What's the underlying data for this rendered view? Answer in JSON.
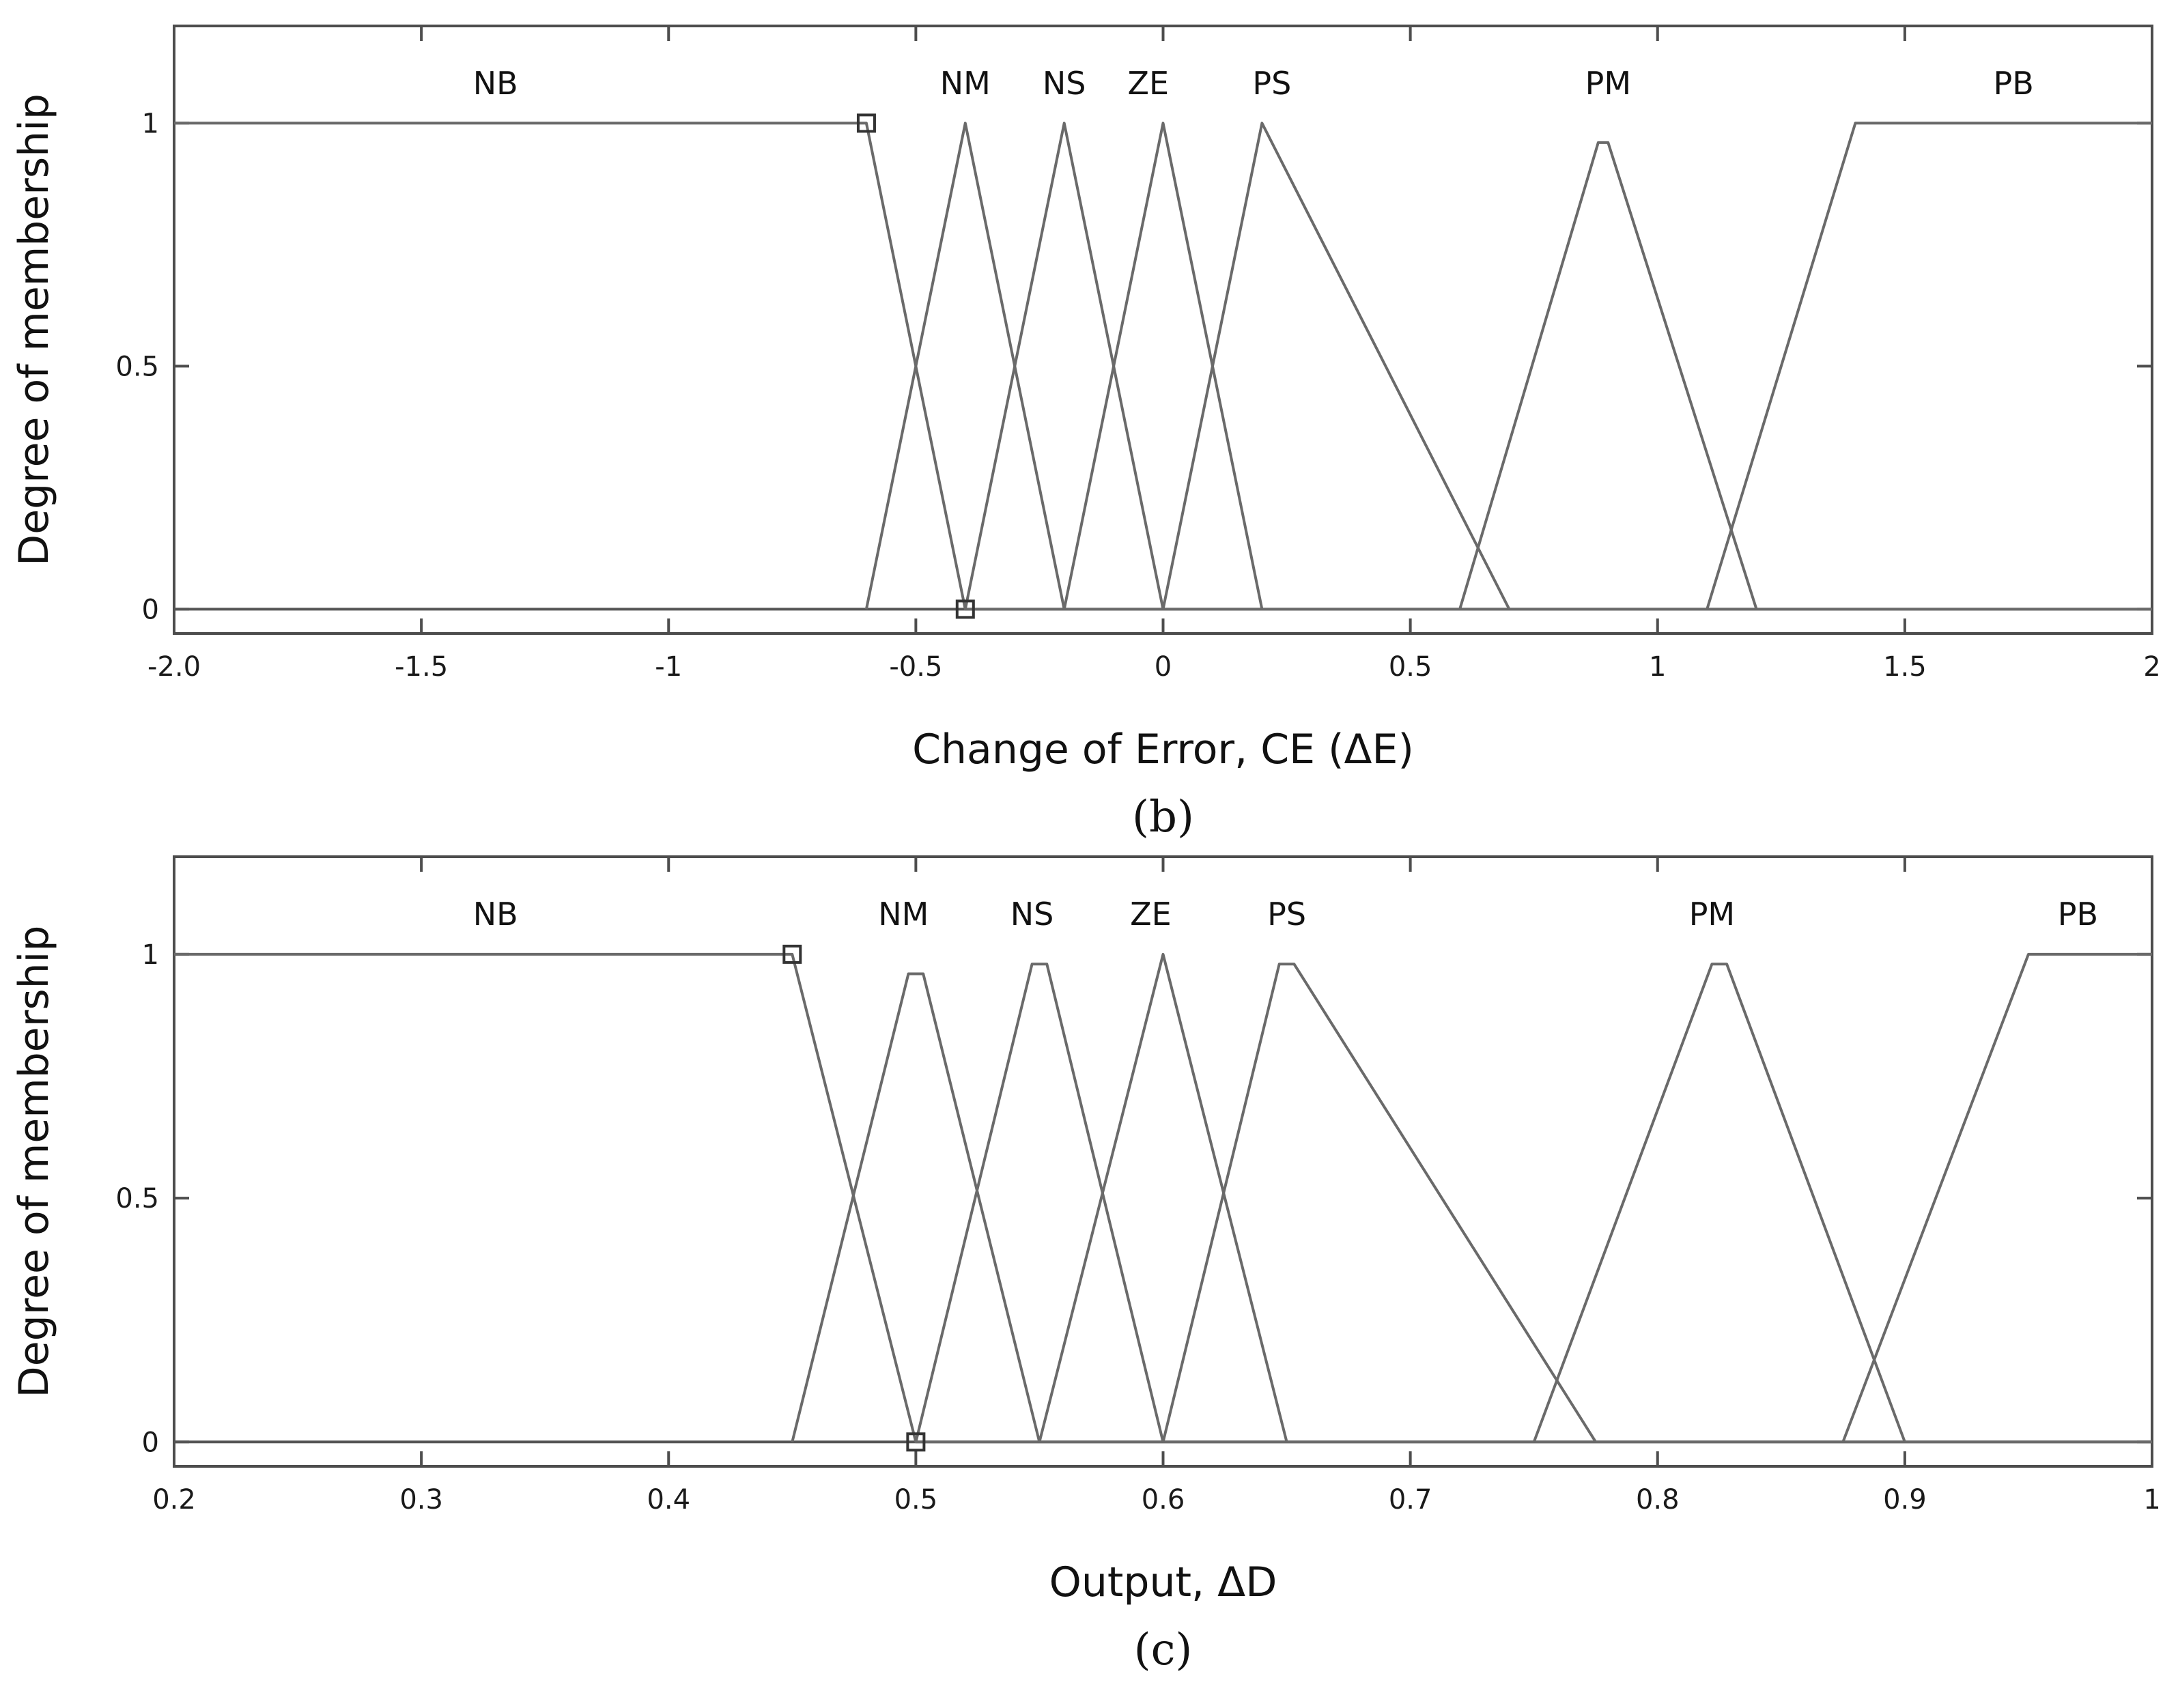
{
  "chart_data": [
    {
      "type": "line",
      "panel_label": "(b)",
      "xlabel": "Change of Error, CE (ΔE)",
      "ylabel": "Degree of membership",
      "xlim": [
        -2,
        2
      ],
      "ylim": [
        -0.05,
        1.2
      ],
      "x_ticks": [
        -2,
        -1.5,
        -1,
        -0.5,
        0,
        0.5,
        1,
        1.5,
        2
      ],
      "x_tick_labels": [
        "-2.0",
        "-1.5",
        "-1",
        "-0.5",
        "0",
        "0.5",
        "1",
        "1.5",
        "2"
      ],
      "y_ticks": [
        0,
        0.5,
        1
      ],
      "y_tick_labels": [
        "0",
        "0.5",
        "1"
      ],
      "grid": false,
      "series": [
        {
          "name": "NB",
          "label_x": -1.35,
          "points": [
            [
              -2,
              1
            ],
            [
              -0.6,
              1
            ],
            [
              -0.4,
              0
            ],
            [
              2,
              0
            ]
          ]
        },
        {
          "name": "NM",
          "label_x": -0.4,
          "points": [
            [
              -0.6,
              0
            ],
            [
              -0.4,
              1
            ],
            [
              -0.2,
              0
            ]
          ]
        },
        {
          "name": "NS",
          "label_x": -0.2,
          "points": [
            [
              -0.4,
              0
            ],
            [
              -0.2,
              1
            ],
            [
              0,
              0
            ]
          ]
        },
        {
          "name": "ZE",
          "label_x": -0.03,
          "points": [
            [
              -0.2,
              0
            ],
            [
              0,
              1
            ],
            [
              0.2,
              0
            ]
          ]
        },
        {
          "name": "PS",
          "label_x": 0.22,
          "points": [
            [
              0,
              0
            ],
            [
              0.2,
              1
            ],
            [
              0.7,
              0
            ]
          ]
        },
        {
          "name": "PM",
          "label_x": 0.9,
          "points": [
            [
              0.6,
              0
            ],
            [
              0.88,
              0.96
            ],
            [
              0.9,
              0.96
            ],
            [
              1.2,
              0
            ]
          ]
        },
        {
          "name": "PB",
          "label_x": 1.72,
          "points": [
            [
              1.1,
              0
            ],
            [
              1.4,
              1
            ],
            [
              2,
              1
            ]
          ]
        }
      ],
      "markers": [
        [
          -0.6,
          1
        ],
        [
          -0.4,
          0
        ]
      ]
    },
    {
      "type": "line",
      "panel_label": "(c)",
      "xlabel": "Output, ΔD",
      "ylabel": "Degree of membership",
      "xlim": [
        0.2,
        1
      ],
      "ylim": [
        -0.05,
        1.2
      ],
      "x_ticks": [
        0.2,
        0.3,
        0.4,
        0.5,
        0.6,
        0.7,
        0.8,
        0.9,
        1
      ],
      "x_tick_labels": [
        "0.2",
        "0.3",
        "0.4",
        "0.5",
        "0.6",
        "0.7",
        "0.8",
        "0.9",
        "1"
      ],
      "y_ticks": [
        0,
        0.5,
        1
      ],
      "y_tick_labels": [
        "0",
        "0.5",
        "1"
      ],
      "grid": false,
      "series": [
        {
          "name": "NB",
          "label_x": 0.33,
          "points": [
            [
              0.2,
              1
            ],
            [
              0.45,
              1
            ],
            [
              0.5,
              0
            ],
            [
              1,
              0
            ]
          ]
        },
        {
          "name": "NM",
          "label_x": 0.495,
          "points": [
            [
              0.45,
              0
            ],
            [
              0.497,
              0.96
            ],
            [
              0.503,
              0.96
            ],
            [
              0.55,
              0
            ]
          ]
        },
        {
          "name": "NS",
          "label_x": 0.547,
          "points": [
            [
              0.5,
              0
            ],
            [
              0.547,
              0.98
            ],
            [
              0.553,
              0.98
            ],
            [
              0.6,
              0
            ]
          ]
        },
        {
          "name": "ZE",
          "label_x": 0.595,
          "points": [
            [
              0.55,
              0
            ],
            [
              0.6,
              1
            ],
            [
              0.65,
              0
            ]
          ]
        },
        {
          "name": "PS",
          "label_x": 0.65,
          "points": [
            [
              0.6,
              0
            ],
            [
              0.647,
              0.98
            ],
            [
              0.653,
              0.98
            ],
            [
              0.775,
              0
            ]
          ]
        },
        {
          "name": "PM",
          "label_x": 0.822,
          "points": [
            [
              0.75,
              0
            ],
            [
              0.822,
              0.98
            ],
            [
              0.828,
              0.98
            ],
            [
              0.9,
              0
            ]
          ]
        },
        {
          "name": "PB",
          "label_x": 0.97,
          "points": [
            [
              0.875,
              0
            ],
            [
              0.95,
              1
            ],
            [
              1,
              1
            ]
          ]
        }
      ],
      "markers": [
        [
          0.45,
          1
        ],
        [
          0.5,
          0
        ]
      ]
    }
  ]
}
